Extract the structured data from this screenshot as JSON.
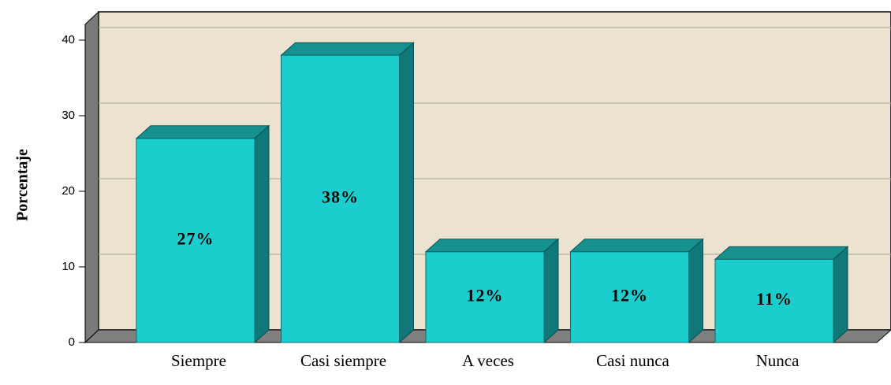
{
  "chart_data": {
    "type": "bar3d",
    "y_label": "Porcentaje",
    "categories": [
      "Siempre",
      "Casi siempre",
      "A veces",
      "Casi nunca",
      "Nunca"
    ],
    "values": [
      27,
      38,
      12,
      12,
      11
    ],
    "value_labels": [
      "27%",
      "38%",
      "12%",
      "12%",
      "11%"
    ],
    "color": "#1ccdcd",
    "ylim": [
      0,
      40
    ],
    "yticks": [
      0,
      10,
      20,
      30,
      40
    ],
    "grid": true
  }
}
